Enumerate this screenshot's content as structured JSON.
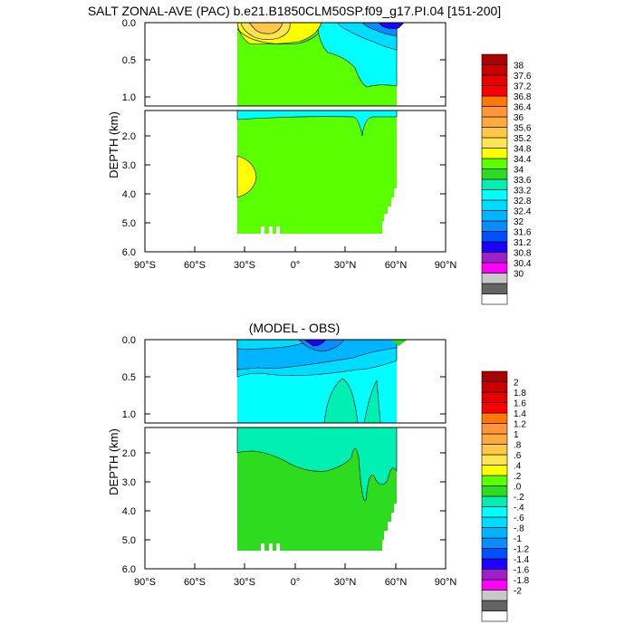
{
  "colors": {
    "salt_scale": [
      "#ffffff",
      "#646464",
      "#c8c8c8",
      "#ff00ff",
      "#a020c8",
      "#1e00ff",
      "#0050ff",
      "#0a8cff",
      "#00b4ff",
      "#00dcff",
      "#00ffff",
      "#00f0b4",
      "#2ddc1e",
      "#5aff00",
      "#ffff00",
      "#ffe650",
      "#ffc846",
      "#ffaa3c",
      "#ff963c",
      "#ff7800",
      "#ff0000",
      "#e60000",
      "#c80000",
      "#aa0000"
    ],
    "diff_scale": [
      "#ffffff",
      "#646464",
      "#c8c8c8",
      "#ff00ff",
      "#a020c8",
      "#1e00ff",
      "#0050ff",
      "#0a8cff",
      "#00b4ff",
      "#00dcff",
      "#00ffff",
      "#00f0b4",
      "#2ddc1e",
      "#5aff00",
      "#ffff00",
      "#ffe650",
      "#ffc846",
      "#ffaa3c",
      "#ff963c",
      "#ff7800",
      "#ff0000",
      "#e60000",
      "#c80000",
      "#aa0000"
    ]
  },
  "chart_data": [
    {
      "type": "heatmap",
      "title": "SALT ZONAL-AVE (PAC) b.e21.B1850CLM50SP.f09_g17.PI.04 [151-200]",
      "ylabel": "DEPTH (km)",
      "xlabel": "",
      "x_ticks": [
        "90°S",
        "60°S",
        "30°S",
        "0°",
        "30°N",
        "60°N",
        "90°N"
      ],
      "xlim": [
        -90,
        90
      ],
      "y_ticks_upper": [
        "0.0",
        "0.5",
        "1.0"
      ],
      "y_ticks_lower": [
        "2.0",
        "3.0",
        "4.0",
        "5.0",
        "6.0"
      ],
      "ylim_upper_km": [
        0,
        1.1
      ],
      "ylim_lower_km": [
        1.1,
        6.0
      ],
      "data_extent_lat": [
        -34,
        61
      ],
      "data_extent_depth_km": [
        0,
        5.35
      ],
      "dominant_value": "34.4-34.8",
      "colorbar_labels": [
        "38",
        "37.6",
        "37.2",
        "36.8",
        "36.4",
        "36",
        "35.6",
        "35.2",
        "34.8",
        "34.4",
        "34",
        "33.6",
        "33.2",
        "32.8",
        "32.4",
        "32",
        "31.6",
        "31.2",
        "30.8",
        "30.4",
        "30"
      ]
    },
    {
      "type": "heatmap",
      "title": "(MODEL - OBS)",
      "ylabel": "DEPTH (km)",
      "xlabel": "",
      "x_ticks": [
        "90°S",
        "60°S",
        "30°S",
        "0°",
        "30°N",
        "60°N",
        "90°N"
      ],
      "xlim": [
        -90,
        90
      ],
      "y_ticks_upper": [
        "0.0",
        "0.5",
        "1.0"
      ],
      "y_ticks_lower": [
        "2.0",
        "3.0",
        "4.0",
        "5.0",
        "6.0"
      ],
      "ylim_upper_km": [
        0,
        1.1
      ],
      "ylim_lower_km": [
        1.1,
        6.0
      ],
      "data_extent_lat": [
        -34,
        61
      ],
      "data_extent_depth_km": [
        0,
        5.35
      ],
      "dominant_value": "0.0-0.2",
      "colorbar_labels": [
        "2",
        "1.8",
        "1.6",
        "1.4",
        "1.2",
        "1",
        ".8",
        ".6",
        ".4",
        ".2",
        ".0",
        "-.2",
        "-.4",
        "-.6",
        "-.8",
        "-1",
        "-1.2",
        "-1.4",
        "-1.6",
        "-1.8",
        "-2"
      ]
    }
  ]
}
